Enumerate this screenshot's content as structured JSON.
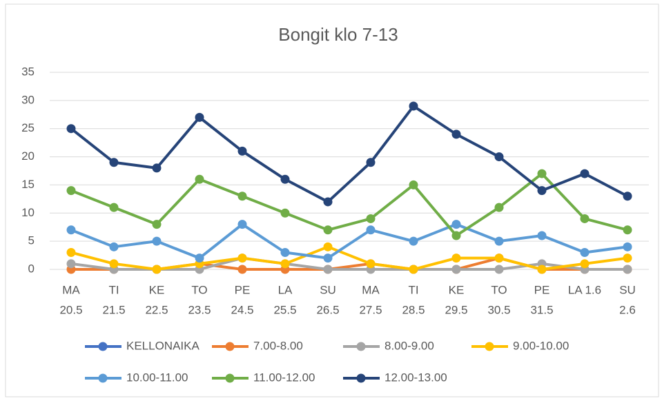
{
  "chart_data": {
    "type": "line",
    "title": "Bongit klo 7-13",
    "categories": [
      [
        "MA",
        "20.5"
      ],
      [
        "TI",
        "21.5"
      ],
      [
        "KE",
        "22.5"
      ],
      [
        "TO",
        "23.5"
      ],
      [
        "PE",
        "24.5"
      ],
      [
        "LA",
        "25.5"
      ],
      [
        "SU",
        "26.5"
      ],
      [
        "MA",
        "27.5"
      ],
      [
        "TI",
        "28.5"
      ],
      [
        "KE",
        "29.5"
      ],
      [
        "TO",
        "30.5"
      ],
      [
        "PE",
        "31.5"
      ],
      [
        "LA 1.6"
      ],
      [
        "SU",
        "2.6"
      ]
    ],
    "series": [
      {
        "name": "KELLONAIKA",
        "color": "#4472c4",
        "values": [
          null,
          null,
          null,
          null,
          null,
          null,
          null,
          null,
          null,
          null,
          null,
          null,
          null,
          null
        ]
      },
      {
        "name": "7.00-8.00",
        "color": "#ed7d31",
        "values": [
          0,
          0,
          0,
          1,
          0,
          0,
          0,
          1,
          0,
          0,
          2,
          0,
          0,
          0
        ]
      },
      {
        "name": "8.00-9.00",
        "color": "#a5a5a5",
        "values": [
          1,
          0,
          0,
          0,
          2,
          1,
          0,
          0,
          0,
          0,
          0,
          1,
          0,
          0
        ]
      },
      {
        "name": "9.00-10.00",
        "color": "#ffc000",
        "values": [
          3,
          1,
          0,
          1,
          2,
          1,
          4,
          1,
          0,
          2,
          2,
          0,
          1,
          2
        ]
      },
      {
        "name": "10.00-11.00",
        "color": "#5b9bd5",
        "values": [
          7,
          4,
          5,
          2,
          8,
          3,
          2,
          7,
          5,
          8,
          5,
          6,
          3,
          4
        ]
      },
      {
        "name": "11.00-12.00",
        "color": "#70ad47",
        "values": [
          14,
          11,
          8,
          16,
          13,
          10,
          7,
          9,
          15,
          6,
          11,
          17,
          9,
          7
        ]
      },
      {
        "name": "12.00-13.00",
        "color": "#264478",
        "values": [
          25,
          19,
          18,
          27,
          21,
          16,
          12,
          19,
          29,
          24,
          20,
          14,
          17,
          13
        ]
      }
    ],
    "ylim": [
      0,
      35
    ],
    "yticks": [
      0,
      5,
      10,
      15,
      20,
      25,
      30,
      35
    ],
    "grid": true,
    "legend": "bottom"
  }
}
